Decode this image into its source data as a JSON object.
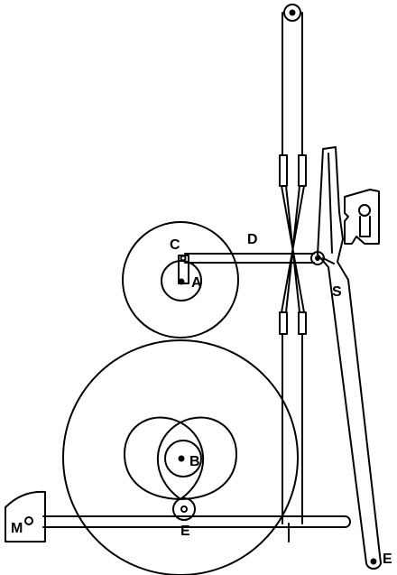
{
  "diagram": {
    "labels": {
      "A": "A",
      "B": "B",
      "C": "C",
      "D": "D",
      "S": "S",
      "E_lower": "E",
      "E_right": "E",
      "M": "M"
    },
    "colors": {
      "ink": "#000000",
      "paper": "#ffffff"
    }
  }
}
